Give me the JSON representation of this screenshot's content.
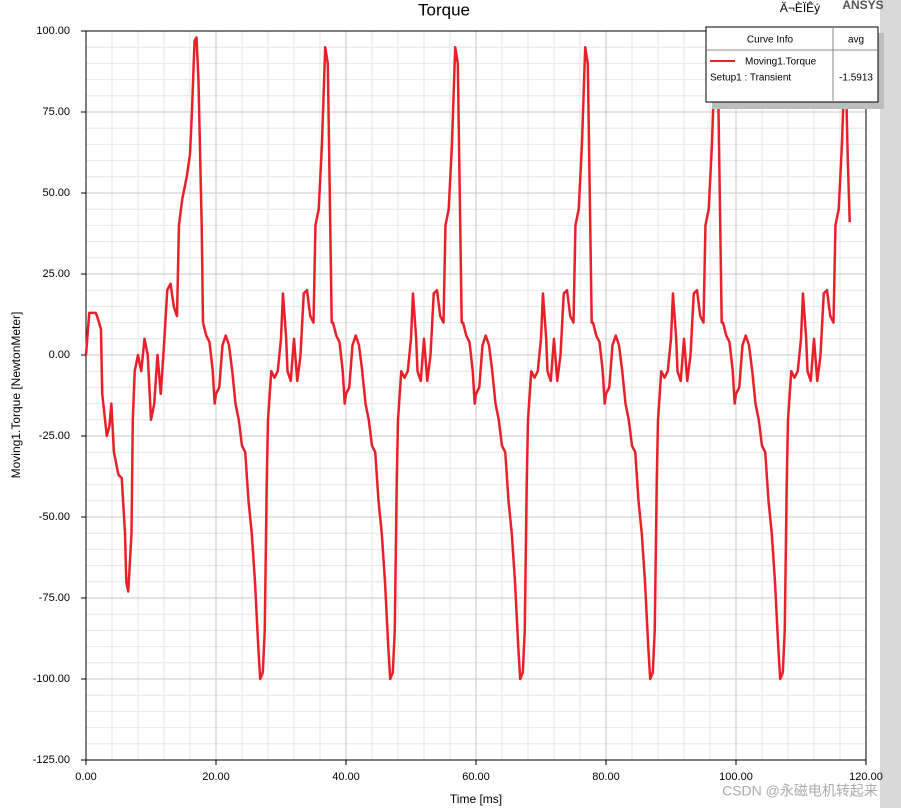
{
  "chart_data": {
    "type": "line",
    "title": "Torque",
    "corner_text": "Ä¬ÈÏÊý",
    "brand": "ANSYS",
    "x_label": "Time [ms]",
    "y_label": "Moving1.Torque [NewtonMeter]",
    "watermark": "CSDN @永磁电机转起来",
    "legend": {
      "header": [
        "Curve Info",
        "avg"
      ],
      "solution": "Setup1 : Transient",
      "avg": -1.5913
    },
    "xlim": [
      0,
      120
    ],
    "ylim": [
      -125,
      100
    ],
    "grid": true,
    "xticks": [
      {
        "value": 0,
        "label": "0.00"
      },
      {
        "value": 20,
        "label": "20.00"
      },
      {
        "value": 40,
        "label": "40.00"
      },
      {
        "value": 60,
        "label": "60.00"
      },
      {
        "value": 80,
        "label": "80.00"
      },
      {
        "value": 100,
        "label": "100.00"
      },
      {
        "value": 120,
        "label": "120.00"
      }
    ],
    "yticks": [
      {
        "value": -125,
        "label": "-125.00"
      },
      {
        "value": -100,
        "label": "-100.00"
      },
      {
        "value": -75,
        "label": "-75.00"
      },
      {
        "value": -50,
        "label": "-50.00"
      },
      {
        "value": -25,
        "label": "-25.00"
      },
      {
        "value": 0,
        "label": "0.00"
      },
      {
        "value": 25,
        "label": "25.00"
      },
      {
        "value": 50,
        "label": "50.00"
      },
      {
        "value": 75,
        "label": "75.00"
      },
      {
        "value": 100,
        "label": "100.00"
      }
    ],
    "x": [
      0,
      0.5,
      1.5,
      1.7,
      2.3,
      2.5,
      3.2,
      3.6,
      3.9,
      4.3,
      5,
      5.5,
      6,
      6.2,
      6.5,
      7,
      7.2,
      7.5,
      8,
      8.5,
      9,
      9.5,
      10,
      10.5,
      11,
      11.5,
      12,
      12.5,
      13,
      13.5,
      14,
      14.3,
      14.8,
      15.5,
      16,
      16.3,
      16.7,
      17,
      17.3,
      17.8,
      18,
      18.5,
      19,
      19.5,
      19.8,
      20,
      20.5,
      21,
      21.5,
      22,
      22.5,
      23,
      23.5,
      24,
      24.5,
      25,
      25.5,
      26,
      26.5,
      26.8,
      27.2,
      27.5,
      27.8,
      28,
      28.5,
      29,
      29.5,
      30,
      30.3,
      30.8,
      31,
      31.5,
      32,
      32.5,
      33,
      33.5,
      34,
      34.5,
      35,
      35.3,
      35.8,
      36.3,
      36.8,
      37.2,
      37.5,
      37.8,
      38,
      38.5,
      39,
      39.5,
      39.8,
      40,
      40.5,
      41,
      41.5,
      42,
      42.5,
      43,
      43.5,
      44,
      44.5,
      45,
      45.5,
      46,
      46.5,
      46.8,
      47.2,
      47.5,
      47.8,
      48,
      48.5,
      49,
      49.5,
      50,
      50.3,
      50.8,
      51,
      51.5,
      52,
      52.5,
      53,
      53.5,
      54,
      54.5,
      55,
      55.3,
      55.8,
      56.3,
      56.8,
      57.2,
      57.5,
      57.8,
      58,
      58.5,
      59,
      59.5,
      59.8,
      60,
      60.5,
      61,
      61.5,
      62,
      62.5,
      63,
      63.5,
      64,
      64.5,
      65,
      65.5,
      66,
      66.5,
      66.8,
      67.2,
      67.5,
      67.8,
      68,
      68.5,
      69,
      69.5,
      70,
      70.3,
      70.8,
      71,
      71.5,
      72,
      72.5,
      73,
      73.5,
      74,
      74.5,
      75,
      75.3,
      75.8,
      76.3,
      76.8,
      77.2,
      77.5,
      77.8,
      78,
      78.5,
      79,
      79.5,
      79.8,
      80,
      80.5,
      81,
      81.5,
      82,
      82.5,
      83,
      83.5,
      84,
      84.5,
      85,
      85.5,
      86,
      86.5,
      86.8,
      87.2,
      87.5,
      87.8,
      88,
      88.5,
      89,
      89.5,
      90,
      90.3,
      90.8,
      91,
      91.5,
      92,
      92.5,
      93,
      93.5,
      94,
      94.5,
      95,
      95.3,
      95.8,
      96.3,
      96.8,
      97.2,
      97.5,
      97.8,
      98,
      98.5,
      99,
      99.5,
      99.8,
      100,
      100.5,
      101,
      101.5,
      102,
      102.5,
      103,
      103.5,
      104,
      104.5,
      105,
      105.5,
      106,
      106.5,
      106.8,
      107.2,
      107.5,
      107.8,
      108,
      108.5,
      109,
      109.5,
      110,
      110.3,
      110.8,
      111,
      111.5,
      112,
      112.5,
      113,
      113.5,
      114,
      114.5,
      115,
      115.3,
      115.8,
      116.3,
      116.8,
      117.2,
      117.5
    ],
    "series": [
      {
        "name": "Moving1.Torque",
        "color": "#e8202a",
        "values": [
          0,
          13,
          13,
          12,
          8,
          -12,
          -25,
          -22,
          -15,
          -30,
          -37,
          -38,
          -55,
          -70,
          -73,
          -55,
          -20,
          -5,
          0,
          -5,
          5,
          0,
          -20,
          -15,
          0,
          -12,
          3,
          20,
          22,
          15,
          12,
          40,
          48,
          55,
          62,
          75,
          97,
          98,
          85,
          40,
          10,
          6,
          4,
          -5,
          -15,
          -12,
          -10,
          3,
          6,
          3,
          -5,
          -15,
          -20,
          -28,
          -30,
          -45,
          -55,
          -70,
          -90,
          -100,
          -98,
          -85,
          -40,
          -20,
          -5,
          -7,
          -5,
          5,
          19,
          5,
          -5,
          -8,
          5,
          -8,
          0,
          19,
          20,
          12,
          10,
          40,
          45,
          65,
          95,
          90,
          50,
          10,
          10,
          6,
          4,
          -5,
          -15,
          -12,
          -10,
          3,
          6,
          3,
          -5,
          -15,
          -20,
          -28,
          -30,
          -45,
          -55,
          -70,
          -90,
          -100,
          -98,
          -85,
          -40,
          -20,
          -5,
          -7,
          -5,
          5,
          19,
          5,
          -5,
          -8,
          5,
          -8,
          0,
          19,
          20,
          12,
          10,
          40,
          45,
          65,
          95,
          90,
          50,
          10,
          10,
          6,
          4,
          -5,
          -15,
          -12,
          -10,
          3,
          6,
          3,
          -5,
          -15,
          -20,
          -28,
          -30,
          -45,
          -55,
          -70,
          -90,
          -100,
          -98,
          -85,
          -40,
          -20,
          -5,
          -7,
          -5,
          5,
          19,
          5,
          -5,
          -8,
          5,
          -8,
          0,
          19,
          20,
          12,
          10,
          40,
          45,
          65,
          95,
          90,
          50,
          10,
          10,
          6,
          4,
          -5,
          -15,
          -12,
          -10,
          3,
          6,
          3,
          -5,
          -15,
          -20,
          -28,
          -30,
          -45,
          -55,
          -70,
          -90,
          -100,
          -98,
          -85,
          -40,
          -20,
          -5,
          -7,
          -5,
          5,
          19,
          5,
          -5,
          -8,
          5,
          -8,
          0,
          19,
          20,
          12,
          10,
          40,
          45,
          65,
          95,
          90,
          50,
          10,
          10,
          6,
          4,
          -5,
          -15,
          -12,
          -10,
          3,
          6,
          3,
          -5,
          -15,
          -20,
          -28,
          -30,
          -45,
          -55,
          -70,
          -90,
          -100,
          -98,
          -85,
          -40,
          -20,
          -5,
          -7,
          -5,
          5,
          19,
          5,
          -5,
          -8,
          5,
          -8,
          0,
          19,
          20,
          12,
          10,
          40,
          45,
          65,
          95,
          60,
          41
        ]
      }
    ]
  }
}
